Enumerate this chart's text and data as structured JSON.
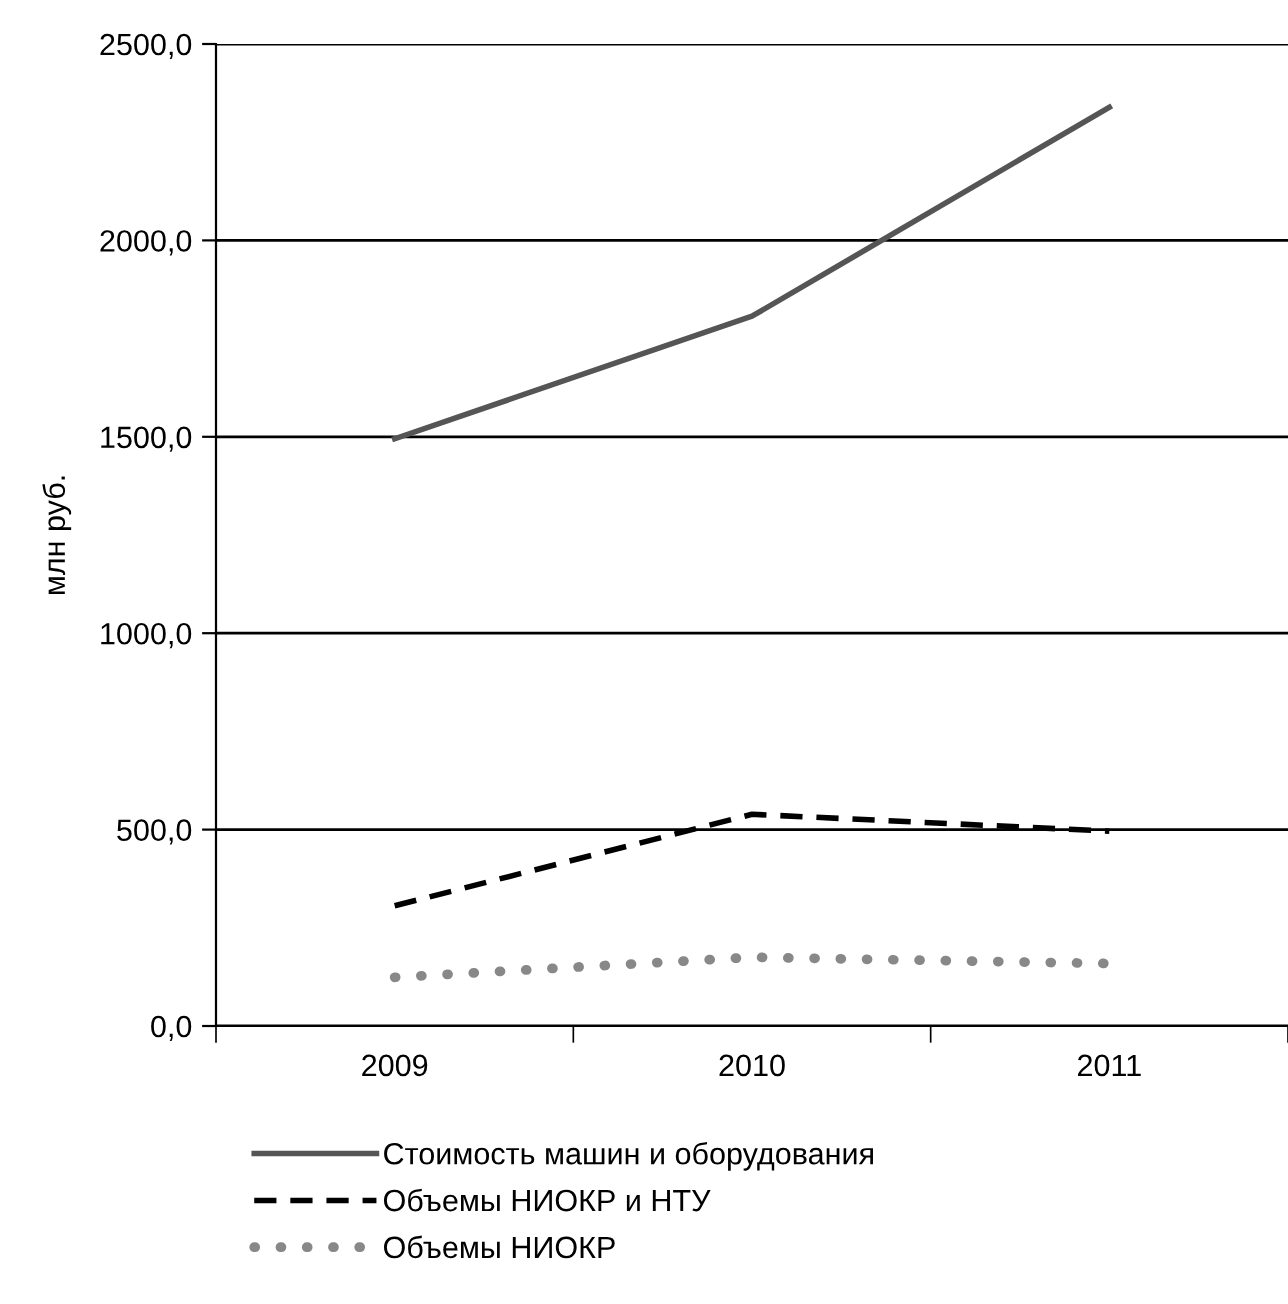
{
  "chart_data": {
    "type": "line",
    "ylabel": "млн руб.",
    "categories": [
      "2009",
      "2010",
      "2011"
    ],
    "series": [
      {
        "name": "Стоимость машин и оборудования",
        "color": "#555555",
        "values": [
          1495,
          1807,
          2339
        ],
        "line_style": "solid"
      },
      {
        "name": "Объемы НИОКР и НТУ",
        "color": "#000000",
        "values": [
          306,
          539,
          496
        ],
        "line_style": "dashed"
      },
      {
        "name": "Объемы НИОКР",
        "color": "#888888",
        "values": [
          124,
          175,
          159
        ],
        "line_style": "dotted"
      }
    ],
    "ylim": [
      0,
      2500
    ],
    "yticks": [
      {
        "value": 0,
        "label": "0,0"
      },
      {
        "value": 500,
        "label": "500,0"
      },
      {
        "value": 1000,
        "label": "1000,0"
      },
      {
        "value": 1500,
        "label": "1500,0"
      },
      {
        "value": 2000,
        "label": "2000,0"
      },
      {
        "value": 2500,
        "label": "2500,0"
      }
    ],
    "grid": "y",
    "legend": "bottom",
    "marker": "none"
  }
}
